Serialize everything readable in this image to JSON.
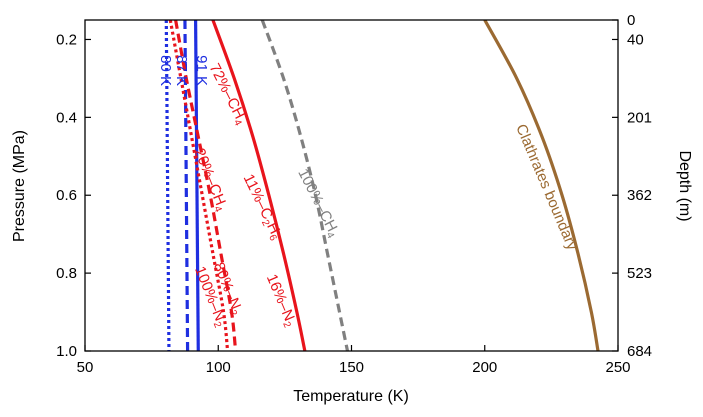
{
  "chart_data": {
    "type": "line",
    "xlabel": "Temperature (K)",
    "ylabel_left": "Pressure (MPa)",
    "ylabel_right": "Depth (m)",
    "xlim": [
      50,
      250
    ],
    "ylim": [
      0.15,
      1.0
    ],
    "y_inverted": true,
    "x_ticks": [
      50,
      100,
      150,
      200,
      250
    ],
    "y_ticks_left": [
      0.2,
      0.4,
      0.6,
      0.8,
      1.0
    ],
    "y_tick_labels_left": [
      "0.2",
      "0.4",
      "0.6",
      "0.8",
      "1.0"
    ],
    "y_ticks_right": [
      0.15,
      0.2,
      0.4,
      0.6,
      0.8,
      1.0
    ],
    "y_tick_labels_right": [
      "0",
      "40",
      "201",
      "362",
      "523",
      "684"
    ],
    "colors": {
      "blue": "#1f2fe0",
      "red": "#e8141c",
      "gray": "#808080",
      "brown": "#9b6a32"
    },
    "series": [
      {
        "name": "80 K",
        "color": "#1f2fe0",
        "dash": "dot",
        "points": [
          [
            80.5,
            0.15
          ],
          [
            81.5,
            1.0
          ]
        ]
      },
      {
        "name": "87 K",
        "color": "#1f2fe0",
        "dash": "dash",
        "points": [
          [
            87.5,
            0.15
          ],
          [
            88.5,
            1.0
          ]
        ]
      },
      {
        "name": "91 K",
        "color": "#1f2fe0",
        "dash": "solid",
        "points": [
          [
            91.5,
            0.15
          ],
          [
            92.5,
            1.0
          ]
        ]
      },
      {
        "name": "100%–N2",
        "color": "#e8141c",
        "dash": "dot",
        "points": [
          [
            82,
            0.15
          ],
          [
            86,
            0.3
          ],
          [
            90,
            0.45
          ],
          [
            94,
            0.6
          ],
          [
            98,
            0.75
          ],
          [
            102,
            0.9
          ],
          [
            103.5,
            1.0
          ]
        ]
      },
      {
        "name": "20%–CH4 80%–N2",
        "color": "#e8141c",
        "dash": "dash",
        "points": [
          [
            84,
            0.15
          ],
          [
            88,
            0.3
          ],
          [
            92.5,
            0.45
          ],
          [
            97,
            0.6
          ],
          [
            101,
            0.75
          ],
          [
            105,
            0.9
          ],
          [
            106.5,
            1.0
          ]
        ]
      },
      {
        "name": "72%–CH4 11%–C2H6 16%–N2",
        "color": "#e8141c",
        "dash": "solid",
        "points": [
          [
            98,
            0.15
          ],
          [
            106,
            0.3
          ],
          [
            113,
            0.45
          ],
          [
            119,
            0.6
          ],
          [
            124.5,
            0.75
          ],
          [
            129.5,
            0.9
          ],
          [
            132.5,
            1.0
          ]
        ]
      },
      {
        "name": "100%–CH4",
        "color": "#808080",
        "dash": "dash",
        "points": [
          [
            116.5,
            0.15
          ],
          [
            124.5,
            0.3
          ],
          [
            131,
            0.45
          ],
          [
            136.5,
            0.6
          ],
          [
            141,
            0.75
          ],
          [
            145.5,
            0.9
          ],
          [
            148.5,
            1.0
          ]
        ]
      },
      {
        "name": "Clathrates boundary",
        "color": "#9b6a32",
        "dash": "solid",
        "points": [
          [
            200,
            0.15
          ],
          [
            212,
            0.3
          ],
          [
            221.5,
            0.45
          ],
          [
            229,
            0.6
          ],
          [
            235,
            0.75
          ],
          [
            240,
            0.9
          ],
          [
            242.5,
            1.0
          ]
        ]
      }
    ],
    "annotations": [
      {
        "id": "label-80k",
        "parts": [
          [
            "80 K",
            null
          ]
        ],
        "color": "#1f2fe0",
        "x": 80,
        "y": 0.28,
        "rotate": 90
      },
      {
        "id": "label-87k",
        "parts": [
          [
            "87 K",
            null
          ]
        ],
        "color": "#1f2fe0",
        "x": 86,
        "y": 0.28,
        "rotate": 90
      },
      {
        "id": "label-91k",
        "parts": [
          [
            "91 K",
            null
          ]
        ],
        "color": "#1f2fe0",
        "x": 93.5,
        "y": 0.28,
        "rotate": 90
      },
      {
        "id": "label-100-n2",
        "parts": [
          [
            "100%–N",
            null
          ],
          [
            "2",
            "sub"
          ]
        ],
        "color": "#e8141c",
        "x": 97,
        "y": 0.86,
        "rotate": 68
      },
      {
        "id": "label-20-ch4",
        "parts": [
          [
            "20%–CH",
            null
          ],
          [
            "4",
            "sub"
          ]
        ],
        "color": "#e8141c",
        "x": 97,
        "y": 0.56,
        "rotate": 68
      },
      {
        "id": "label-80-n2",
        "parts": [
          [
            "80%–N",
            null
          ],
          [
            "2",
            "sub"
          ]
        ],
        "color": "#e8141c",
        "x": 103.5,
        "y": 0.84,
        "rotate": 68
      },
      {
        "id": "label-72-ch4",
        "parts": [
          [
            "72%–CH",
            null
          ],
          [
            "4",
            "sub"
          ]
        ],
        "color": "#e8141c",
        "x": 103.5,
        "y": 0.34,
        "rotate": 63
      },
      {
        "id": "label-11-c2h6",
        "parts": [
          [
            "11%–C",
            null
          ],
          [
            "2",
            "sub"
          ],
          [
            "H",
            null
          ],
          [
            "6",
            "sub"
          ]
        ],
        "color": "#e8141c",
        "x": 116.5,
        "y": 0.63,
        "rotate": 64
      },
      {
        "id": "label-16-n2",
        "parts": [
          [
            "16%–N",
            null
          ],
          [
            "2",
            "sub"
          ]
        ],
        "color": "#e8141c",
        "x": 123.5,
        "y": 0.87,
        "rotate": 67
      },
      {
        "id": "label-100-ch4",
        "parts": [
          [
            "100%–CH",
            null
          ],
          [
            "4",
            "sub"
          ]
        ],
        "color": "#808080",
        "x": 137.5,
        "y": 0.62,
        "rotate": 63
      },
      {
        "id": "label-clathrates",
        "parts": [
          [
            "Clathrates boundary",
            null
          ]
        ],
        "color": "#9b6a32",
        "x": 223,
        "y": 0.58,
        "rotate": 67
      }
    ]
  }
}
